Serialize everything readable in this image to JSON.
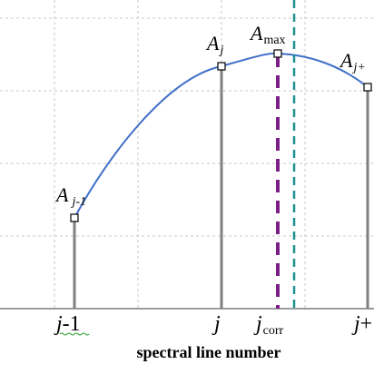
{
  "diagram": {
    "x_axis_title": "spectral line number",
    "points": [
      {
        "key": "j_minus_1",
        "amplitude_label": {
          "base": "A",
          "sub": "j-1"
        },
        "tick_label": {
          "base": "j",
          "suffix": "-1"
        }
      },
      {
        "key": "j",
        "amplitude_label": {
          "base": "A",
          "sub": "j"
        },
        "tick_label": {
          "base": "j",
          "suffix": ""
        }
      },
      {
        "key": "j_plus",
        "amplitude_label": {
          "base": "A",
          "sub": "j+"
        },
        "tick_label": {
          "base": "j",
          "suffix": "+"
        }
      }
    ],
    "peak": {
      "amplitude_label": {
        "base": "A",
        "sub": "max"
      },
      "correction_tick_label": {
        "base": "j",
        "sub": "corr"
      }
    },
    "colors": {
      "curve": "#3f6fc8",
      "stems": "#808080",
      "grid": "#c8c8c8",
      "peak_line": "#7b1f86",
      "marker_line": "#1f8f8f",
      "baseline": "#7a7a7a",
      "markers": "#000000"
    }
  }
}
